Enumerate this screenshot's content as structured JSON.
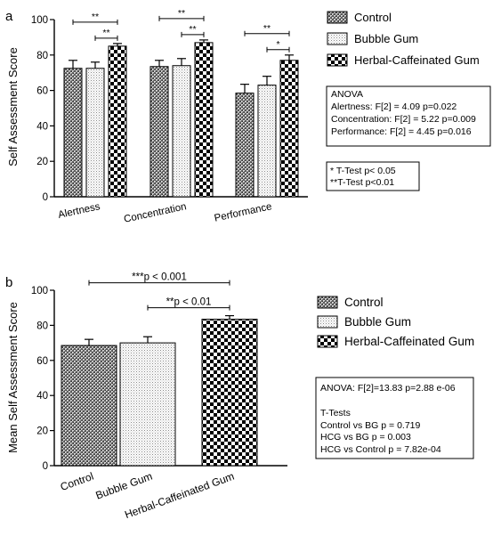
{
  "chart_data": [
    {
      "panel_label": "a",
      "type": "bar",
      "categories": [
        "Alertness",
        "Concentration",
        "Performance"
      ],
      "series": [
        {
          "name": "Control",
          "values": [
            72.5,
            73.5,
            58.5
          ],
          "errors": [
            4.5,
            3.5,
            5.0
          ]
        },
        {
          "name": "Bubble Gum",
          "values": [
            72.5,
            74.0,
            63.0
          ],
          "errors": [
            3.5,
            4.0,
            5.0
          ]
        },
        {
          "name": "Herbal-Caffeinated Gum",
          "values": [
            85.0,
            87.0,
            77.0
          ],
          "errors": [
            1.5,
            1.5,
            3.0
          ]
        }
      ],
      "ylabel": "Self Assessment Score",
      "ylim": [
        0,
        100
      ],
      "yticks": [
        "0",
        "20",
        "40",
        "60",
        "80",
        "100"
      ],
      "legend_position": "top-right",
      "significance": [
        {
          "category": 0,
          "from": 0,
          "to": 2,
          "level": 1,
          "label": "**"
        },
        {
          "category": 0,
          "from": 1,
          "to": 2,
          "level": 0,
          "label": "**"
        },
        {
          "category": 1,
          "from": 0,
          "to": 2,
          "level": 1,
          "label": "**"
        },
        {
          "category": 1,
          "from": 1,
          "to": 2,
          "level": 0,
          "label": "**"
        },
        {
          "category": 2,
          "from": 0,
          "to": 2,
          "level": 1,
          "label": "**"
        },
        {
          "category": 2,
          "from": 1,
          "to": 2,
          "level": 0,
          "label": "*"
        }
      ],
      "annotations": {
        "anova": [
          "ANOVA",
          "Alertness:  F[2] = 4.09  p=0.022",
          "Concentration: F[2] = 5.22 p=0.009",
          "Performance: F[2] = 4.45 p=0.016"
        ],
        "ttest": [
          "* T-Test p< 0.05",
          "**T-Test p<0.01"
        ]
      }
    },
    {
      "panel_label": "b",
      "type": "bar",
      "categories": [
        "Control",
        "Bubble Gum",
        "Herbal-Caffeinated Gum"
      ],
      "series": [
        {
          "name": "Mean Self Assessment Score",
          "values": [
            68.5,
            70.0,
            83.5
          ],
          "errors": [
            3.5,
            3.5,
            2.0
          ]
        }
      ],
      "series_legend": [
        "Control",
        "Bubble Gum",
        "Herbal-Caffeinated Gum"
      ],
      "ylabel": "Mean Self Assessment Score",
      "ylim": [
        0,
        100
      ],
      "yticks": [
        "0",
        "20",
        "40",
        "60",
        "80",
        "100"
      ],
      "legend_position": "top-right",
      "significance": [
        {
          "from": 0,
          "to": 2,
          "level": 1,
          "label": "***p < 0.001"
        },
        {
          "from": 1,
          "to": 2,
          "level": 0,
          "label": "**p < 0.01"
        }
      ],
      "annotations": {
        "anova": [
          "ANOVA: F[2]=13.83 p=2.88 e-06",
          "",
          "T-Tests",
          "Control vs BG p = 0.719",
          "HCG vs BG p = 0.003",
          "HCG vs Control p = 7.82e-04"
        ]
      }
    }
  ]
}
